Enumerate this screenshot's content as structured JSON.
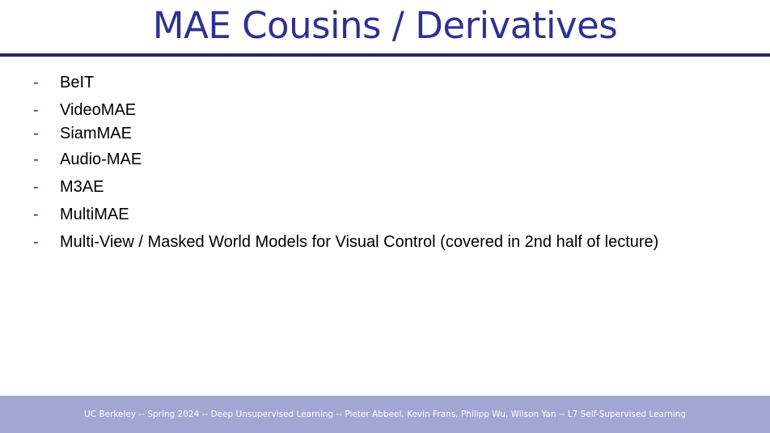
{
  "slide": {
    "title": "MAE Cousins / Derivatives",
    "bullet_marker": "-",
    "bullets": [
      "BeIT",
      "VideoMAE",
      "SiamMAE",
      "Audio-MAE",
      "M3AE",
      "MultiMAE",
      "Multi-View / Masked World Models for Visual Control (covered in 2nd half of lecture)"
    ],
    "footer": "UC Berkeley -- Spring 2024 -- Deep Unsupervised Learning -- Pieter Abbeel, Kevin Frans, Philipp Wu, Wilson Yan -- L7 Self-Supervised Learning"
  },
  "colors": {
    "title": "#2e3192",
    "rule": "#262663",
    "footer_band": "#a3a5d3",
    "footer_text": "#ffffff"
  }
}
